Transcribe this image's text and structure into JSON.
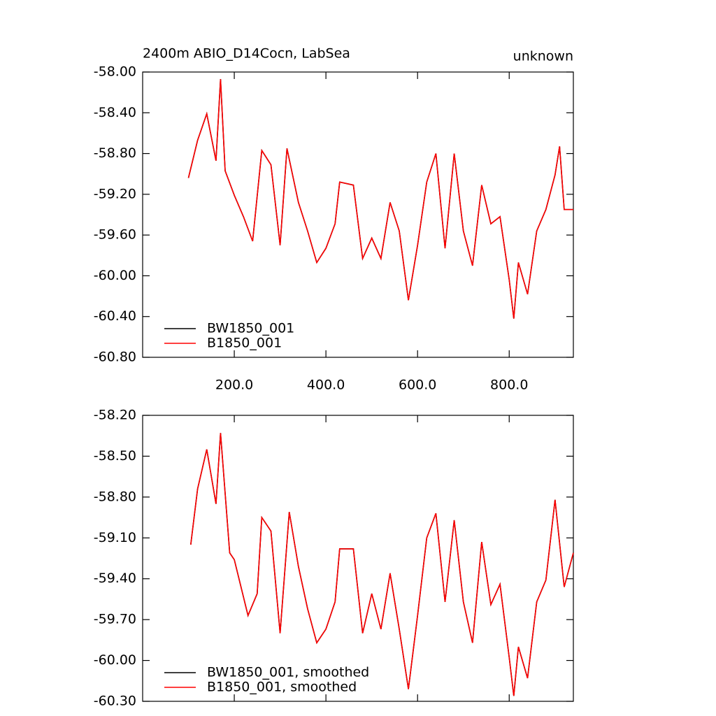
{
  "chart_data": [
    {
      "type": "line",
      "title": "2400m ABIO_D14Cocn, LabSea",
      "right_title": "unknown",
      "x": [
        100,
        120,
        140,
        160,
        170,
        180,
        200,
        220,
        240,
        260,
        280,
        300,
        315,
        340,
        360,
        380,
        400,
        420,
        430,
        460,
        480,
        500,
        520,
        540,
        560,
        580,
        600,
        620,
        640,
        660,
        680,
        700,
        720,
        740,
        760,
        780,
        800,
        810,
        820,
        840,
        860,
        880,
        900,
        910,
        920,
        940
      ],
      "series": [
        {
          "name": "BW1850_001",
          "color": "#000000",
          "values": [
            -59.04,
            -58.67,
            -58.41,
            -58.87,
            -58.07,
            -58.97,
            -59.21,
            -59.42,
            -59.66,
            -58.77,
            -58.91,
            -59.7,
            -58.75,
            -59.28,
            -59.56,
            -59.87,
            -59.73,
            -59.49,
            -59.08,
            -59.11,
            -59.83,
            -59.63,
            -59.83,
            -59.28,
            -59.56,
            -60.24,
            -59.7,
            -59.08,
            -58.8,
            -59.73,
            -58.8,
            -59.56,
            -59.9,
            -59.11,
            -59.49,
            -59.42,
            -60.04,
            -60.42,
            -59.87,
            -60.18,
            -59.56,
            -59.35,
            -59.01,
            -58.73,
            -59.35,
            -59.35
          ]
        },
        {
          "name": "B1850_001",
          "color": "#ff0000",
          "values": [
            -59.04,
            -58.67,
            -58.41,
            -58.87,
            -58.07,
            -58.97,
            -59.21,
            -59.42,
            -59.66,
            -58.77,
            -58.91,
            -59.7,
            -58.75,
            -59.28,
            -59.56,
            -59.87,
            -59.73,
            -59.49,
            -59.08,
            -59.11,
            -59.83,
            -59.63,
            -59.83,
            -59.28,
            -59.56,
            -60.24,
            -59.7,
            -59.08,
            -58.8,
            -59.73,
            -58.8,
            -59.56,
            -59.9,
            -59.11,
            -59.49,
            -59.42,
            -60.04,
            -60.42,
            -59.87,
            -60.18,
            -59.56,
            -59.35,
            -59.01,
            -58.73,
            -59.35,
            -59.35
          ]
        }
      ],
      "xlim": [
        0,
        940
      ],
      "xticks": [
        {
          "value": 200,
          "label": "200.0"
        },
        {
          "value": 400,
          "label": "400.0"
        },
        {
          "value": 600,
          "label": "600.0"
        },
        {
          "value": 800,
          "label": "800.0"
        }
      ],
      "ylim": [
        -60.8,
        -58
      ],
      "yticks": [
        {
          "value": -58,
          "label": "-58.00"
        },
        {
          "value": -58.4,
          "label": "-58.40"
        },
        {
          "value": -58.8,
          "label": "-58.80"
        },
        {
          "value": -59.2,
          "label": "-59.20"
        },
        {
          "value": -59.6,
          "label": "-59.60"
        },
        {
          "value": -60,
          "label": "-60.00"
        },
        {
          "value": -60.4,
          "label": "-60.40"
        },
        {
          "value": -60.8,
          "label": "-60.80"
        }
      ],
      "legend": "lower left"
    },
    {
      "type": "line",
      "x": [
        105,
        120,
        140,
        160,
        170,
        190,
        200,
        230,
        250,
        260,
        280,
        300,
        320,
        340,
        360,
        380,
        400,
        420,
        430,
        460,
        480,
        500,
        520,
        540,
        560,
        580,
        600,
        620,
        640,
        660,
        680,
        700,
        720,
        740,
        760,
        780,
        800,
        810,
        820,
        840,
        860,
        880,
        900,
        920,
        940
      ],
      "series": [
        {
          "name": "BW1850_001, smoothed",
          "color": "#000000",
          "values": [
            -59.15,
            -58.74,
            -58.45,
            -58.85,
            -58.33,
            -59.21,
            -59.26,
            -59.67,
            -59.51,
            -58.95,
            -59.05,
            -59.8,
            -58.91,
            -59.31,
            -59.62,
            -59.87,
            -59.77,
            -59.57,
            -59.18,
            -59.18,
            -59.8,
            -59.51,
            -59.77,
            -59.36,
            -59.77,
            -60.21,
            -59.67,
            -59.1,
            -58.92,
            -59.57,
            -58.97,
            -59.57,
            -59.87,
            -59.13,
            -59.59,
            -59.44,
            -59.98,
            -60.26,
            -59.9,
            -60.13,
            -59.57,
            -59.41,
            -58.82,
            -59.46,
            -59.21
          ]
        },
        {
          "name": "B1850_001, smoothed",
          "color": "#ff0000",
          "values": [
            -59.15,
            -58.74,
            -58.45,
            -58.85,
            -58.33,
            -59.21,
            -59.26,
            -59.67,
            -59.51,
            -58.95,
            -59.05,
            -59.8,
            -58.91,
            -59.31,
            -59.62,
            -59.87,
            -59.77,
            -59.57,
            -59.18,
            -59.18,
            -59.8,
            -59.51,
            -59.77,
            -59.36,
            -59.77,
            -60.21,
            -59.67,
            -59.1,
            -58.92,
            -59.57,
            -58.97,
            -59.57,
            -59.87,
            -59.13,
            -59.59,
            -59.44,
            -59.98,
            -60.26,
            -59.9,
            -60.13,
            -59.57,
            -59.41,
            -58.82,
            -59.46,
            -59.21
          ]
        }
      ],
      "xlim": [
        0,
        940
      ],
      "xticks": [
        200,
        400,
        600,
        800
      ],
      "ylim": [
        -60.3,
        -58.2
      ],
      "yticks": [
        {
          "value": -58.2,
          "label": "-58.20"
        },
        {
          "value": -58.5,
          "label": "-58.50"
        },
        {
          "value": -58.8,
          "label": "-58.80"
        },
        {
          "value": -59.1,
          "label": "-59.10"
        },
        {
          "value": -59.4,
          "label": "-59.40"
        },
        {
          "value": -59.7,
          "label": "-59.70"
        },
        {
          "value": -60,
          "label": "-60.00"
        },
        {
          "value": -60.3,
          "label": "-60.30"
        }
      ],
      "legend": "lower left"
    }
  ]
}
